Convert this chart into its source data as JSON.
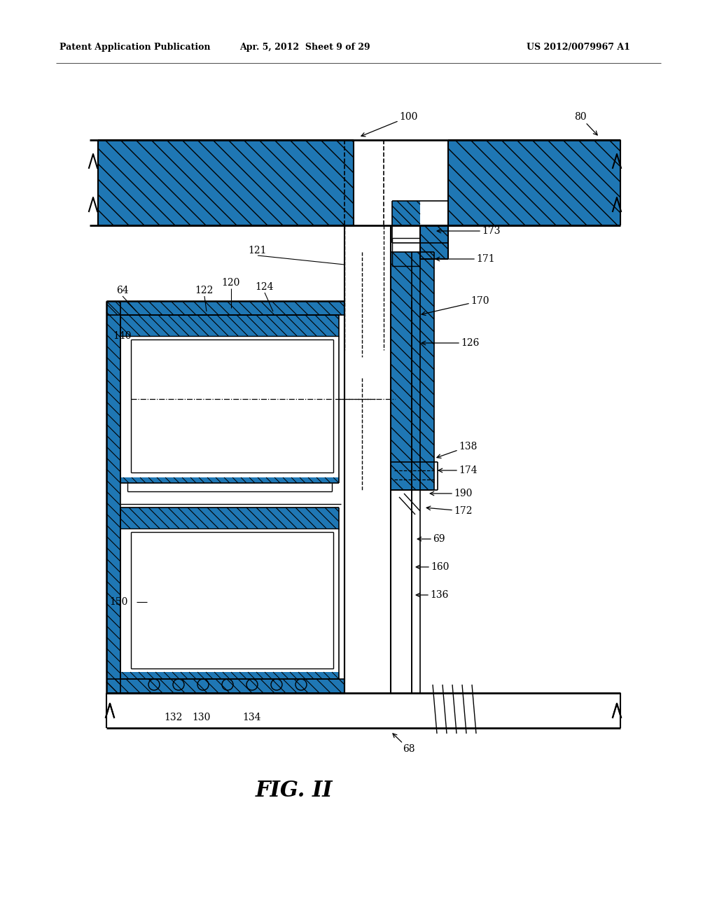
{
  "header_left": "Patent Application Publication",
  "header_center": "Apr. 5, 2012  Sheet 9 of 29",
  "header_right": "US 2012/0079967 A1",
  "title": "FIG. II",
  "fig_width": 1024,
  "fig_height": 1320,
  "background": "#ffffff"
}
